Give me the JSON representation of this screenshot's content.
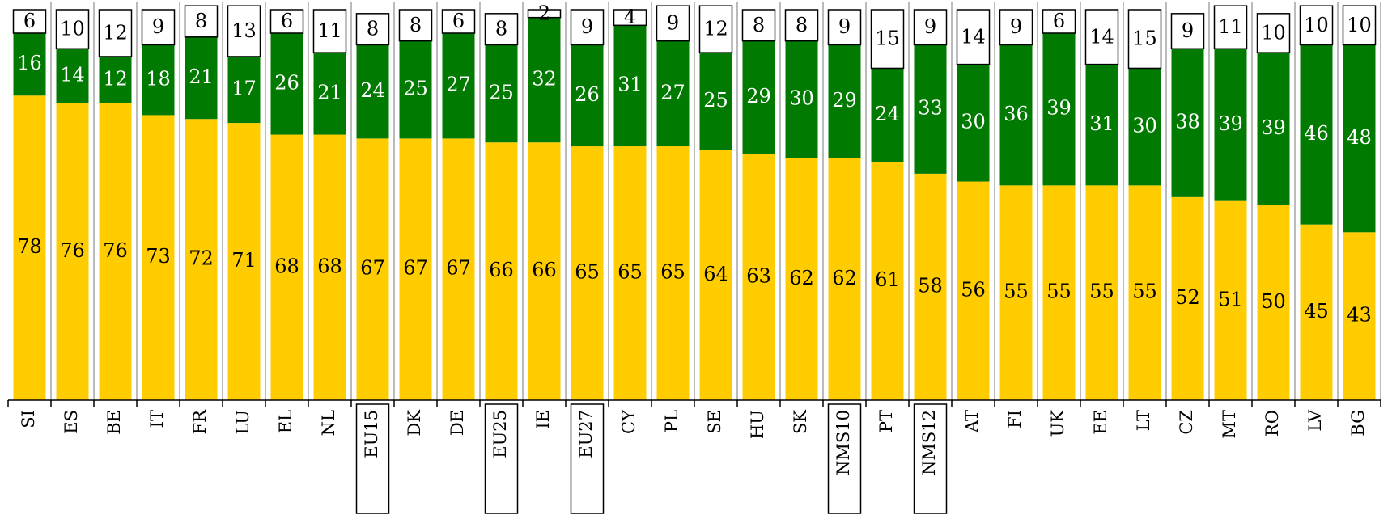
{
  "chart_data": {
    "type": "stacked_bar",
    "categories": [
      "SI",
      "ES",
      "BE",
      "IT",
      "FR",
      "LU",
      "EL",
      "NL",
      "EU15",
      "DK",
      "DE",
      "EU25",
      "IE",
      "EU27",
      "CY",
      "PL",
      "SE",
      "HU",
      "SK",
      "NMS10",
      "PT",
      "NMS12",
      "AT",
      "FI",
      "UK",
      "EE",
      "LT",
      "CZ",
      "MT",
      "RO",
      "LV",
      "BG"
    ],
    "highlighted": [
      8,
      11,
      13,
      19,
      21
    ],
    "series": [
      {
        "color": "#ffcc00",
        "label_color": "#000000",
        "values": [
          78,
          76,
          76,
          73,
          72,
          71,
          68,
          68,
          67,
          67,
          67,
          66,
          66,
          65,
          65,
          65,
          64,
          63,
          62,
          62,
          61,
          58,
          56,
          55,
          55,
          55,
          55,
          52,
          51,
          50,
          45,
          43
        ]
      },
      {
        "color": "#007a00",
        "label_color": "#ffffff",
        "values": [
          16,
          14,
          12,
          18,
          21,
          17,
          26,
          21,
          24,
          25,
          27,
          25,
          32,
          26,
          31,
          27,
          25,
          29,
          30,
          29,
          24,
          33,
          30,
          36,
          39,
          31,
          30,
          38,
          39,
          39,
          46,
          48
        ]
      },
      {
        "color": "#ffffff",
        "label_color": "#000000",
        "values": [
          6,
          10,
          12,
          9,
          8,
          13,
          6,
          11,
          8,
          8,
          6,
          8,
          2,
          9,
          4,
          9,
          12,
          8,
          8,
          9,
          15,
          9,
          14,
          9,
          6,
          14,
          15,
          9,
          11,
          10,
          10,
          10
        ]
      }
    ],
    "ylim": [
      0,
      100
    ]
  }
}
